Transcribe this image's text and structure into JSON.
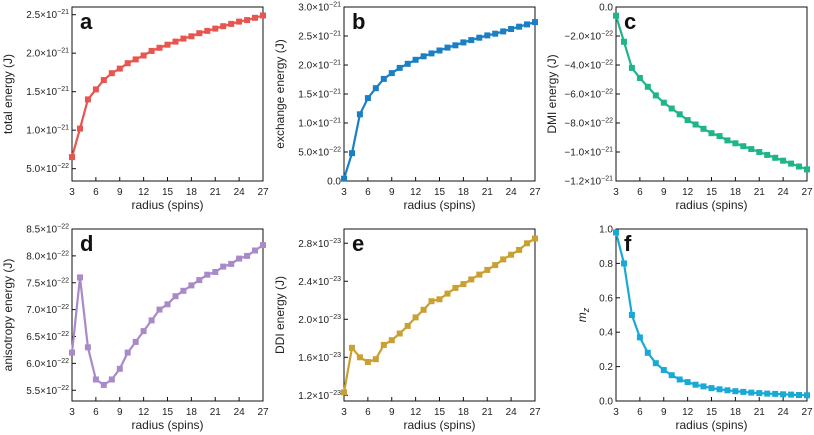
{
  "chart_data": [
    {
      "type": "line",
      "panel_label": "a",
      "color": "#e8544e",
      "xlabel": "radius (spins)",
      "ylabel": "total energy (J)",
      "xlim": [
        3,
        27
      ],
      "ylim": [
        3.4e-22,
        2.6e-21
      ],
      "xticks": [
        3,
        6,
        9,
        12,
        15,
        18,
        21,
        24,
        27
      ],
      "yticks": [
        {
          "value": 5e-22,
          "mant": "5.0",
          "exp": "−22"
        },
        {
          "value": 1e-21,
          "mant": "1.0",
          "exp": "−21"
        },
        {
          "value": 1.5e-21,
          "mant": "1.5",
          "exp": "−21"
        },
        {
          "value": 2e-21,
          "mant": "2.0",
          "exp": "−21"
        },
        {
          "value": 2.5e-21,
          "mant": "2.5",
          "exp": "−21"
        }
      ],
      "x": [
        3,
        4,
        5,
        6,
        7,
        8,
        9,
        10,
        11,
        12,
        13,
        14,
        15,
        16,
        17,
        18,
        19,
        20,
        21,
        22,
        23,
        24,
        25,
        26,
        27
      ],
      "y": [
        6.5e-22,
        1.02e-21,
        1.4e-21,
        1.53e-21,
        1.65e-21,
        1.74e-21,
        1.8e-21,
        1.87e-21,
        1.92e-21,
        1.97e-21,
        2.03e-21,
        2.07e-21,
        2.11e-21,
        2.15e-21,
        2.19e-21,
        2.22e-21,
        2.26e-21,
        2.29e-21,
        2.32e-21,
        2.35e-21,
        2.38e-21,
        2.41e-21,
        2.43e-21,
        2.46e-21,
        2.49e-21
      ]
    },
    {
      "type": "line",
      "panel_label": "b",
      "color": "#1a7fc3",
      "xlabel": "radius (spins)",
      "ylabel": "exchange energy (J)",
      "xlim": [
        3,
        27
      ],
      "ylim": [
        0,
        3e-21
      ],
      "xticks": [
        3,
        6,
        9,
        12,
        15,
        18,
        21,
        24,
        27
      ],
      "yticks": [
        {
          "value": 0,
          "mant": "0.0",
          "exp": ""
        },
        {
          "value": 5e-22,
          "mant": "5.0",
          "exp": "−22"
        },
        {
          "value": 1e-21,
          "mant": "1.0",
          "exp": "−21"
        },
        {
          "value": 1.5e-21,
          "mant": "1.5",
          "exp": "−21"
        },
        {
          "value": 2e-21,
          "mant": "2.0",
          "exp": "−21"
        },
        {
          "value": 2.5e-21,
          "mant": "2.5",
          "exp": "−21"
        },
        {
          "value": 3e-21,
          "mant": "3.0",
          "exp": "−21"
        }
      ],
      "x": [
        3,
        4,
        5,
        6,
        7,
        8,
        9,
        10,
        11,
        12,
        13,
        14,
        15,
        16,
        17,
        18,
        19,
        20,
        21,
        22,
        23,
        24,
        25,
        26,
        27
      ],
      "y": [
        4e-23,
        4.8e-22,
        1.15e-21,
        1.43e-21,
        1.6e-21,
        1.76e-21,
        1.86e-21,
        1.95e-21,
        2.02e-21,
        2.09e-21,
        2.15e-21,
        2.2e-21,
        2.25e-21,
        2.3e-21,
        2.34e-21,
        2.39e-21,
        2.43e-21,
        2.47e-21,
        2.51e-21,
        2.54e-21,
        2.58e-21,
        2.62e-21,
        2.66e-21,
        2.7e-21,
        2.74e-21
      ]
    },
    {
      "type": "line",
      "panel_label": "c",
      "color": "#1fb58a",
      "xlabel": "radius (spins)",
      "ylabel": "DMI energy (J)",
      "xlim": [
        3,
        27
      ],
      "ylim": [
        -1.2e-21,
        0
      ],
      "xticks": [
        3,
        6,
        9,
        12,
        15,
        18,
        21,
        24,
        27
      ],
      "yticks": [
        {
          "value": 0,
          "mant": "0.0",
          "exp": ""
        },
        {
          "value": -2e-22,
          "mant": "−2.0",
          "exp": "−22"
        },
        {
          "value": -4e-22,
          "mant": "−4.0",
          "exp": "−22"
        },
        {
          "value": -6e-22,
          "mant": "−6.0",
          "exp": "−22"
        },
        {
          "value": -8e-22,
          "mant": "−8.0",
          "exp": "−22"
        },
        {
          "value": -1e-21,
          "mant": "−1.0",
          "exp": "−21"
        },
        {
          "value": -1.2e-21,
          "mant": "−1.2",
          "exp": "−21"
        }
      ],
      "x": [
        3,
        4,
        5,
        6,
        7,
        8,
        9,
        10,
        11,
        12,
        13,
        14,
        15,
        16,
        17,
        18,
        19,
        20,
        21,
        22,
        23,
        24,
        25,
        26,
        27
      ],
      "y": [
        -6e-23,
        -2.4e-22,
        -4.2e-22,
        -4.9e-22,
        -5.5e-22,
        -6.1e-22,
        -6.6e-22,
        -7e-22,
        -7.4e-22,
        -7.8e-22,
        -8.1e-22,
        -8.4e-22,
        -8.7e-22,
        -8.9e-22,
        -9.2e-22,
        -9.4e-22,
        -9.6e-22,
        -9.8e-22,
        -1e-21,
        -1.02e-21,
        -1.04e-21,
        -1.06e-21,
        -1.08e-21,
        -1.1e-21,
        -1.12e-21
      ]
    },
    {
      "type": "line",
      "panel_label": "d",
      "color": "#a98ac8",
      "xlabel": "radius (spins)",
      "ylabel": "anisotropy energy (J)",
      "xlim": [
        3,
        27
      ],
      "ylim": [
        5.3e-22,
        8.5e-22
      ],
      "xticks": [
        3,
        6,
        9,
        12,
        15,
        18,
        21,
        24,
        27
      ],
      "yticks": [
        {
          "value": 5.5e-22,
          "mant": "5.5",
          "exp": "−22"
        },
        {
          "value": 6e-22,
          "mant": "6.0",
          "exp": "−22"
        },
        {
          "value": 6.5e-22,
          "mant": "6.5",
          "exp": "−22"
        },
        {
          "value": 7e-22,
          "mant": "7.0",
          "exp": "−22"
        },
        {
          "value": 7.5e-22,
          "mant": "7.5",
          "exp": "−22"
        },
        {
          "value": 8e-22,
          "mant": "8.0",
          "exp": "−22"
        },
        {
          "value": 8.5e-22,
          "mant": "8.5",
          "exp": "−22"
        }
      ],
      "x": [
        3,
        4,
        5,
        6,
        7,
        8,
        9,
        10,
        11,
        12,
        13,
        14,
        15,
        16,
        17,
        18,
        19,
        20,
        21,
        22,
        23,
        24,
        25,
        26,
        27
      ],
      "y": [
        6.2e-22,
        7.6e-22,
        6.3e-22,
        5.7e-22,
        5.6e-22,
        5.7e-22,
        5.9e-22,
        6.2e-22,
        6.4e-22,
        6.6e-22,
        6.8e-22,
        7e-22,
        7.1e-22,
        7.25e-22,
        7.35e-22,
        7.45e-22,
        7.55e-22,
        7.65e-22,
        7.7e-22,
        7.8e-22,
        7.85e-22,
        7.95e-22,
        8e-22,
        8.1e-22,
        8.2e-22
      ]
    },
    {
      "type": "line",
      "panel_label": "e",
      "color": "#c9a031",
      "xlabel": "radius (spins)",
      "ylabel": "DDI energy (J)",
      "xlim": [
        3,
        27
      ],
      "ylim": [
        1.14e-23,
        2.95e-23
      ],
      "xticks": [
        3,
        6,
        9,
        12,
        15,
        18,
        21,
        24,
        27
      ],
      "yticks": [
        {
          "value": 1.2e-23,
          "mant": "1.2",
          "exp": "−23"
        },
        {
          "value": 1.6e-23,
          "mant": "1.6",
          "exp": "−23"
        },
        {
          "value": 2e-23,
          "mant": "2.0",
          "exp": "−23"
        },
        {
          "value": 2.4e-23,
          "mant": "2.4",
          "exp": "−23"
        },
        {
          "value": 2.8e-23,
          "mant": "2.8",
          "exp": "−23"
        }
      ],
      "x": [
        3,
        4,
        5,
        6,
        7,
        8,
        9,
        10,
        11,
        12,
        13,
        14,
        15,
        16,
        17,
        18,
        19,
        20,
        21,
        22,
        23,
        24,
        25,
        26,
        27
      ],
      "y": [
        1.23e-23,
        1.7e-23,
        1.6e-23,
        1.55e-23,
        1.58e-23,
        1.73e-23,
        1.78e-23,
        1.85e-23,
        1.93e-23,
        2.02e-23,
        2.1e-23,
        2.19e-23,
        2.21e-23,
        2.27e-23,
        2.33e-23,
        2.37e-23,
        2.42e-23,
        2.47e-23,
        2.52e-23,
        2.57e-23,
        2.63e-23,
        2.68e-23,
        2.73e-23,
        2.8e-23,
        2.85e-23
      ]
    },
    {
      "type": "line",
      "panel_label": "f",
      "color": "#1aa9d6",
      "xlabel": "radius (spins)",
      "ylabel": "m",
      "ylabel_sub": "z",
      "xlim": [
        3,
        27
      ],
      "ylim": [
        0,
        1
      ],
      "xticks": [
        3,
        6,
        9,
        12,
        15,
        18,
        21,
        24,
        27
      ],
      "yticks": [
        {
          "value": 0,
          "mant": "0.0",
          "exp": ""
        },
        {
          "value": 0.2,
          "mant": "0.2",
          "exp": ""
        },
        {
          "value": 0.4,
          "mant": "0.4",
          "exp": ""
        },
        {
          "value": 0.6,
          "mant": "0.6",
          "exp": ""
        },
        {
          "value": 0.8,
          "mant": "0.8",
          "exp": ""
        },
        {
          "value": 1,
          "mant": "1.0",
          "exp": ""
        }
      ],
      "x": [
        3,
        4,
        5,
        6,
        7,
        8,
        9,
        10,
        11,
        12,
        13,
        14,
        15,
        16,
        17,
        18,
        19,
        20,
        21,
        22,
        23,
        24,
        25,
        26,
        27
      ],
      "y": [
        0.98,
        0.8,
        0.5,
        0.37,
        0.28,
        0.22,
        0.18,
        0.15,
        0.125,
        0.11,
        0.095,
        0.085,
        0.075,
        0.068,
        0.062,
        0.057,
        0.053,
        0.049,
        0.046,
        0.043,
        0.041,
        0.039,
        0.037,
        0.035,
        0.033
      ]
    }
  ]
}
